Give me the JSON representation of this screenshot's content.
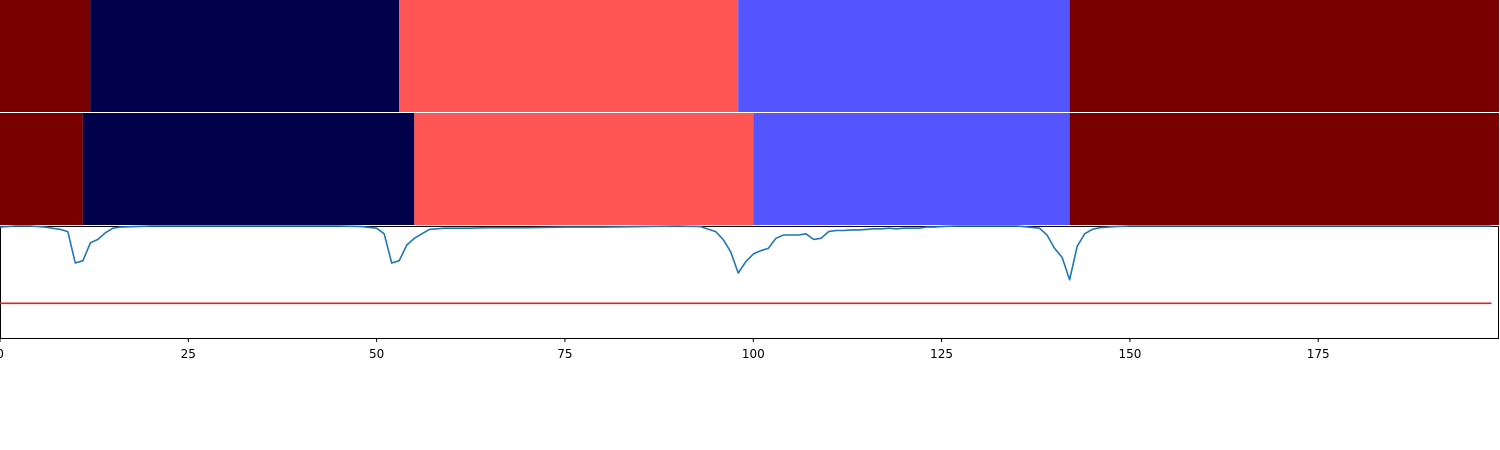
{
  "chart_data": {
    "type": "heatmap",
    "xlim": [
      0,
      199
    ],
    "x_ticks": [
      0,
      25,
      50,
      75,
      100,
      125,
      150,
      175
    ],
    "x_tick_labels": [
      "0",
      "25",
      "50",
      "75",
      "100",
      "125",
      "150",
      "175"
    ],
    "segment_bars": [
      {
        "segments": [
          {
            "start": 0,
            "end": 12,
            "color": "#7a0000"
          },
          {
            "start": 12,
            "end": 53,
            "color": "#00004b"
          },
          {
            "start": 53,
            "end": 98,
            "color": "#ff5555"
          },
          {
            "start": 98,
            "end": 142,
            "color": "#5555ff"
          },
          {
            "start": 142,
            "end": 199,
            "color": "#7a0000"
          }
        ]
      },
      {
        "segments": [
          {
            "start": 0,
            "end": 11,
            "color": "#7a0000"
          },
          {
            "start": 11,
            "end": 55,
            "color": "#00004b"
          },
          {
            "start": 55,
            "end": 100,
            "color": "#ff5555"
          },
          {
            "start": 100,
            "end": 142,
            "color": "#5555ff"
          },
          {
            "start": 142,
            "end": 199,
            "color": "#7a0000"
          }
        ]
      }
    ],
    "line_panel": {
      "ylim": [
        0,
        1.0
      ],
      "series": [
        {
          "color": "#1f77b4",
          "x": [
            0,
            2,
            4,
            6,
            8,
            9,
            10,
            11,
            12,
            13,
            14,
            15,
            16,
            18,
            20,
            25,
            30,
            35,
            40,
            45,
            48,
            50,
            51,
            52,
            53,
            54,
            55,
            56,
            57,
            58,
            59,
            60,
            62,
            65,
            70,
            75,
            80,
            85,
            90,
            93,
            95,
            96,
            97,
            98,
            99,
            100,
            101,
            102,
            103,
            104,
            105,
            106,
            107,
            108,
            109,
            110,
            111,
            112,
            113,
            114,
            115,
            116,
            117,
            118,
            119,
            120,
            122,
            123,
            124,
            125,
            127,
            130,
            135,
            138,
            139,
            140,
            141,
            142,
            143,
            144,
            145,
            146,
            148,
            150,
            160,
            170,
            180,
            190,
            198
          ],
          "y": [
            0.99,
            1.0,
            1.0,
            0.99,
            0.97,
            0.95,
            0.67,
            0.69,
            0.85,
            0.88,
            0.94,
            0.98,
            0.99,
            0.995,
            1.0,
            1.0,
            1.0,
            1.0,
            1.0,
            1.0,
            0.995,
            0.98,
            0.93,
            0.67,
            0.69,
            0.83,
            0.89,
            0.93,
            0.97,
            0.975,
            0.98,
            0.98,
            0.98,
            0.985,
            0.985,
            0.99,
            0.99,
            0.995,
            1.0,
            0.995,
            0.95,
            0.88,
            0.77,
            0.58,
            0.68,
            0.75,
            0.78,
            0.8,
            0.89,
            0.92,
            0.92,
            0.92,
            0.93,
            0.88,
            0.89,
            0.95,
            0.96,
            0.96,
            0.965,
            0.965,
            0.97,
            0.975,
            0.975,
            0.98,
            0.975,
            0.98,
            0.98,
            0.99,
            0.99,
            0.995,
            1.0,
            1.0,
            1.0,
            0.98,
            0.92,
            0.8,
            0.72,
            0.52,
            0.82,
            0.93,
            0.97,
            0.985,
            0.995,
            1.0,
            1.0,
            1.0,
            1.0,
            1.0,
            1.0
          ]
        },
        {
          "color": "#d62728",
          "x": [
            0,
            198
          ],
          "y": [
            0.31,
            0.31
          ]
        }
      ]
    }
  }
}
